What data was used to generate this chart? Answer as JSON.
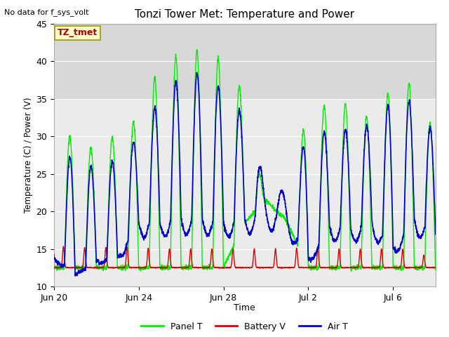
{
  "title": "Tonzi Tower Met: Temperature and Power",
  "xlabel": "Time",
  "ylabel": "Temperature (C) / Power (V)",
  "top_left_text": "No data for f_sys_volt",
  "annotation_box_text": "TZ_tmet",
  "ylim": [
    10,
    45
  ],
  "xlim_days": [
    0,
    18
  ],
  "x_tick_labels": [
    "Jun 20",
    "Jun 24",
    "Jun 28",
    "Jul 2",
    "Jul 6"
  ],
  "x_tick_positions": [
    0,
    4,
    8,
    12,
    16
  ],
  "shaded_band_ymin": 35,
  "shaded_band_ymax": 45,
  "plot_bg_color": "#ebebeb",
  "shaded_color": "#d8d8d8",
  "legend_entries": [
    "Panel T",
    "Battery V",
    "Air T"
  ],
  "legend_colors": [
    "#00ee00",
    "#dd0000",
    "#0000cc"
  ],
  "panel_t_color": "#00ee00",
  "battery_v_color": "#dd0000",
  "air_t_color": "#0000cc",
  "annotation_box_color": "#ffffcc",
  "annotation_box_edge": "#999900",
  "panel_peaks": [
    29.5,
    30.0,
    28.0,
    30.5,
    32.5,
    39.5,
    41.0,
    41.5,
    40.0,
    35.5,
    20.8,
    19.0,
    34.5,
    34.0,
    34.5,
    32.0,
    37.0,
    37.0,
    30.0,
    33.0
  ],
  "air_peaks": [
    26.5,
    27.5,
    25.5,
    27.0,
    30.0,
    35.0,
    38.0,
    38.5,
    36.0,
    32.5,
    23.5,
    22.5,
    30.5,
    30.5,
    31.0,
    31.5,
    35.0,
    34.5,
    30.0,
    32.5
  ],
  "panel_mins": [
    12.5,
    12.5,
    12.5,
    12.5,
    12.5,
    12.5,
    12.5,
    12.5,
    12.5,
    18.5,
    21.5,
    18.5,
    12.5,
    12.5,
    12.5,
    12.5,
    12.5,
    12.5,
    12.5,
    12.5
  ],
  "air_mins": [
    14.0,
    11.5,
    13.5,
    14.0,
    18.5,
    18.5,
    19.0,
    19.0,
    18.5,
    19.0,
    20.0,
    19.0,
    13.5,
    18.0,
    17.5,
    18.5,
    15.0,
    19.0,
    17.0,
    16.5
  ],
  "battery_peaks": [
    15.5,
    15.2,
    15.2,
    15.2,
    15.2,
    15.0,
    15.0,
    15.0,
    15.0,
    15.0,
    15.0,
    15.0,
    15.2,
    15.0,
    15.0,
    15.0,
    15.0,
    15.0,
    13.2,
    13.2
  ]
}
